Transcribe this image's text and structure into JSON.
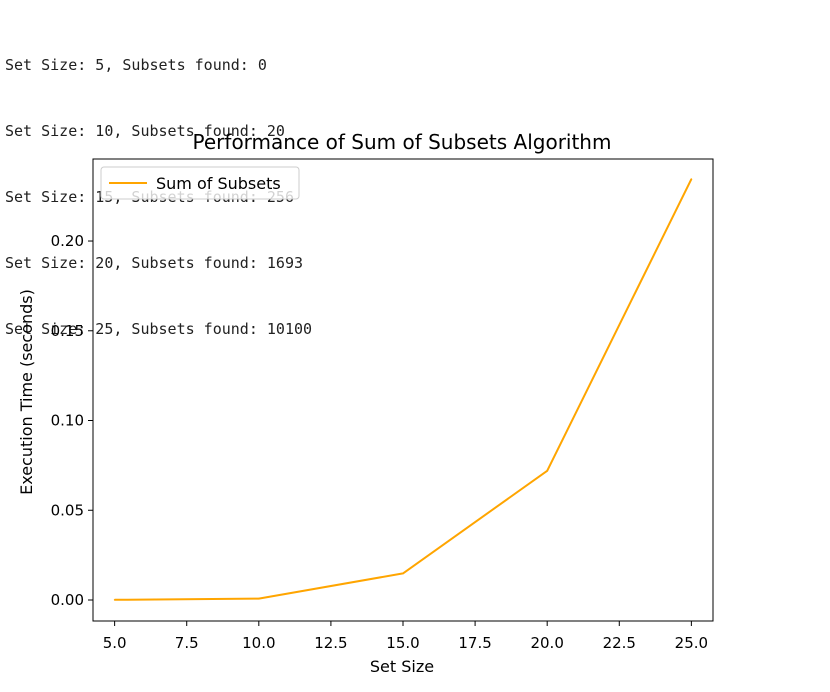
{
  "console": {
    "lines": [
      "Set Size: 5, Subsets found: 0",
      "Set Size: 10, Subsets found: 20",
      "Set Size: 15, Subsets found: 256",
      "Set Size: 20, Subsets found: 1693",
      "Set Size: 25, Subsets found: 10100"
    ]
  },
  "chart_data": {
    "type": "line",
    "title": "Performance of Sum of Subsets Algorithm",
    "xlabel": "Set Size",
    "ylabel": "Execution Time (seconds)",
    "xlim": [
      4.25,
      25.75
    ],
    "ylim": [
      -0.0117,
      0.2457
    ],
    "xticks": [
      5.0,
      7.5,
      10.0,
      12.5,
      15.0,
      17.5,
      20.0,
      22.5,
      25.0
    ],
    "xtick_labels": [
      "5.0",
      "7.5",
      "10.0",
      "12.5",
      "15.0",
      "17.5",
      "20.0",
      "22.5",
      "25.0"
    ],
    "yticks": [
      0.0,
      0.05,
      0.1,
      0.15,
      0.2
    ],
    "ytick_labels": [
      "0.00",
      "0.05",
      "0.10",
      "0.15",
      "0.20"
    ],
    "grid": false,
    "legend": "upper left",
    "series": [
      {
        "name": "Sum of Subsets",
        "color": "#FFA500",
        "x": [
          5,
          10,
          15,
          20,
          25
        ],
        "y": [
          0.0001,
          0.0008,
          0.0148,
          0.072,
          0.2345
        ]
      }
    ]
  }
}
